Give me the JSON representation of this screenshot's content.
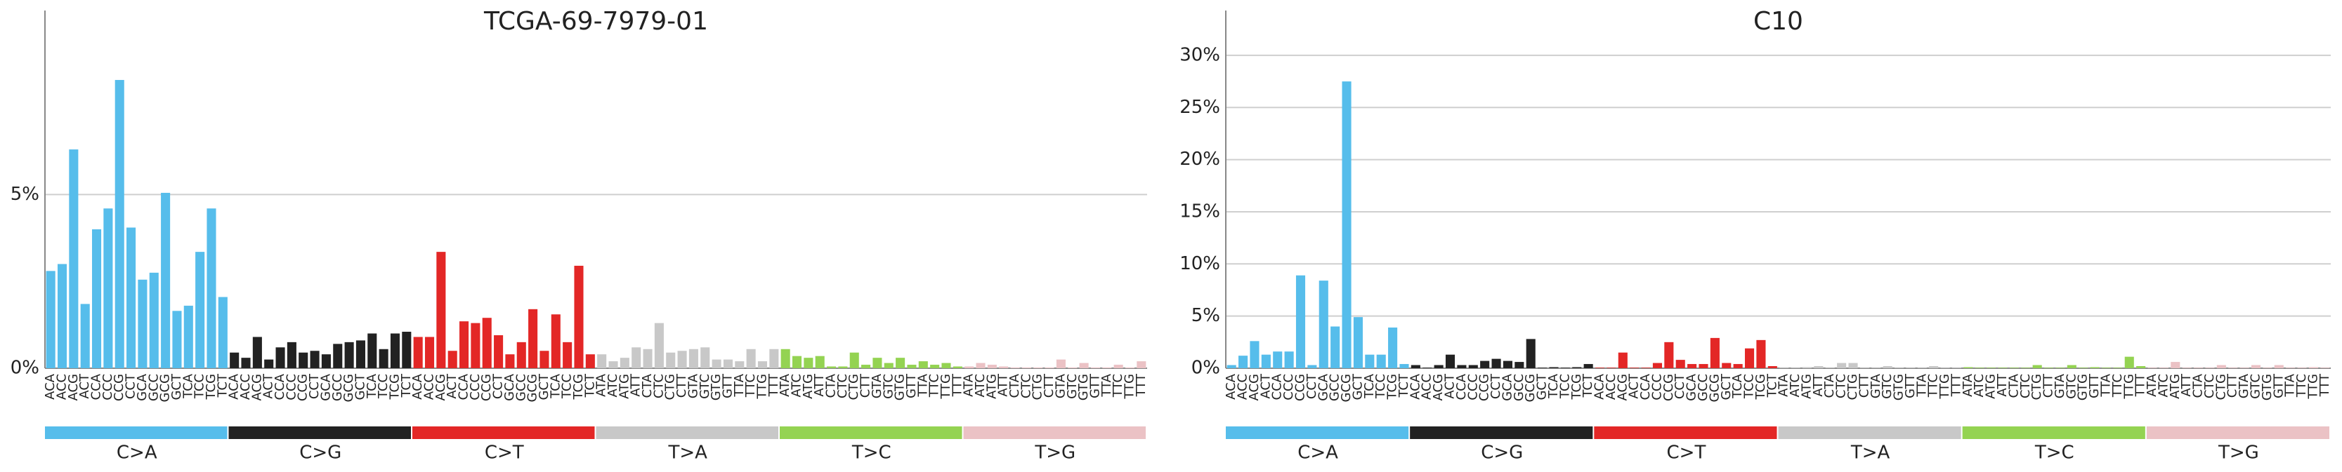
{
  "chart_data": [
    {
      "type": "bar",
      "title": "TCGA-69-7979-01",
      "categories": [
        "ACA",
        "ACC",
        "ACG",
        "ACT",
        "CCA",
        "CCC",
        "CCG",
        "CCT",
        "GCA",
        "GCC",
        "GCG",
        "GCT",
        "TCA",
        "TCC",
        "TCG",
        "TCT",
        "ACA",
        "ACC",
        "ACG",
        "ACT",
        "CCA",
        "CCC",
        "CCG",
        "CCT",
        "GCA",
        "GCC",
        "GCG",
        "GCT",
        "TCA",
        "TCC",
        "TCG",
        "TCT",
        "ACA",
        "ACC",
        "ACG",
        "ACT",
        "CCA",
        "CCC",
        "CCG",
        "CCT",
        "GCA",
        "GCC",
        "GCG",
        "GCT",
        "TCA",
        "TCC",
        "TCG",
        "TCT",
        "ATA",
        "ATC",
        "ATG",
        "ATT",
        "CTA",
        "CTC",
        "CTG",
        "CTT",
        "GTA",
        "GTC",
        "GTG",
        "GTT",
        "TTA",
        "TTC",
        "TTG",
        "TTT",
        "ATA",
        "ATC",
        "ATG",
        "ATT",
        "CTA",
        "CTC",
        "CTG",
        "CTT",
        "GTA",
        "GTC",
        "GTG",
        "GTT",
        "TTA",
        "TTC",
        "TTG",
        "TTT",
        "ATA",
        "ATC",
        "ATG",
        "ATT",
        "CTA",
        "CTC",
        "CTG",
        "CTT",
        "GTA",
        "GTC",
        "GTG",
        "GTT",
        "TTA",
        "TTC",
        "TTG",
        "TTT"
      ],
      "values": [
        2.8,
        3.0,
        6.3,
        1.85,
        4.0,
        4.6,
        8.3,
        4.05,
        2.55,
        2.75,
        5.05,
        1.65,
        1.8,
        3.35,
        4.6,
        2.05,
        0.45,
        0.3,
        0.9,
        0.25,
        0.6,
        0.75,
        0.45,
        0.5,
        0.4,
        0.7,
        0.75,
        0.8,
        1.0,
        0.55,
        1.0,
        1.05,
        0.9,
        0.9,
        3.35,
        0.5,
        1.35,
        1.3,
        1.45,
        0.95,
        0.4,
        0.75,
        1.7,
        0.5,
        1.55,
        0.75,
        2.95,
        0.4,
        0.4,
        0.2,
        0.3,
        0.6,
        0.55,
        1.3,
        0.45,
        0.5,
        0.55,
        0.6,
        0.25,
        0.25,
        0.2,
        0.55,
        0.2,
        0.55,
        0.55,
        0.35,
        0.3,
        0.35,
        0.05,
        0.05,
        0.45,
        0.1,
        0.3,
        0.15,
        0.3,
        0.1,
        0.2,
        0.1,
        0.15,
        0.05,
        0.05,
        0.15,
        0.1,
        0.05,
        0.02,
        0.02,
        0.02,
        0.02,
        0.25,
        0.02,
        0.15,
        0.02,
        0.02,
        0.1,
        0.02,
        0.2
      ],
      "groups": [
        "C>A",
        "C>G",
        "C>T",
        "T>A",
        "T>C",
        "T>G"
      ],
      "colors": [
        "#56bdeb",
        "#222222",
        "#e32726",
        "#c8c8c8",
        "#94d352",
        "#ebc2c5"
      ],
      "ylim": [
        0,
        10.3
      ],
      "yticks": [
        {
          "value": 0,
          "label": "0%"
        },
        {
          "value": 5,
          "label": "5%"
        }
      ],
      "grid": true
    },
    {
      "type": "bar",
      "title": "C10",
      "categories": [
        "ACA",
        "ACC",
        "ACG",
        "ACT",
        "CCA",
        "CCC",
        "CCG",
        "CCT",
        "GCA",
        "GCC",
        "GCG",
        "GCT",
        "TCA",
        "TCC",
        "TCG",
        "TCT",
        "ACA",
        "ACC",
        "ACG",
        "ACT",
        "CCA",
        "CCC",
        "CCG",
        "CCT",
        "GCA",
        "GCC",
        "GCG",
        "GCT",
        "TCA",
        "TCC",
        "TCG",
        "TCT",
        "ACA",
        "ACC",
        "ACG",
        "ACT",
        "CCA",
        "CCC",
        "CCG",
        "CCT",
        "GCA",
        "GCC",
        "GCG",
        "GCT",
        "TCA",
        "TCC",
        "TCG",
        "TCT",
        "ATA",
        "ATC",
        "ATG",
        "ATT",
        "CTA",
        "CTC",
        "CTG",
        "CTT",
        "GTA",
        "GTC",
        "GTG",
        "GTT",
        "TTA",
        "TTC",
        "TTG",
        "TTT",
        "ATA",
        "ATC",
        "ATG",
        "ATT",
        "CTA",
        "CTC",
        "CTG",
        "CTT",
        "GTA",
        "GTC",
        "GTG",
        "GTT",
        "TTA",
        "TTC",
        "TTG",
        "TTT",
        "ATA",
        "ATC",
        "ATG",
        "ATT",
        "CTA",
        "CTC",
        "CTG",
        "CTT",
        "GTA",
        "GTC",
        "GTG",
        "GTT",
        "TTA",
        "TTC",
        "TTG",
        "TTT"
      ],
      "values": [
        0.3,
        1.2,
        2.6,
        1.3,
        1.6,
        1.6,
        8.9,
        0.3,
        8.4,
        4.0,
        27.5,
        4.9,
        1.3,
        1.3,
        3.9,
        0.4,
        0.3,
        0.05,
        0.3,
        1.3,
        0.3,
        0.3,
        0.7,
        0.9,
        0.7,
        0.6,
        2.8,
        0.05,
        0.1,
        0.05,
        0.1,
        0.4,
        0.05,
        0.05,
        1.5,
        0.05,
        0.05,
        0.5,
        2.5,
        0.8,
        0.4,
        0.4,
        2.9,
        0.5,
        0.4,
        1.9,
        2.7,
        0.2,
        0.05,
        0.05,
        0.1,
        0.2,
        0.05,
        0.5,
        0.5,
        0.05,
        0.05,
        0.2,
        0.05,
        0.05,
        0.05,
        0.2,
        0.05,
        0.05,
        0.1,
        0.05,
        0.05,
        0.05,
        0.05,
        0.05,
        0.3,
        0.05,
        0.05,
        0.3,
        0.05,
        0.1,
        0.05,
        0.05,
        1.1,
        0.2,
        0.05,
        0.05,
        0.6,
        0.05,
        0.05,
        0.05,
        0.3,
        0.05,
        0.05,
        0.3,
        0.05,
        0.3,
        0.05,
        0.05,
        0.1,
        0.05
      ],
      "groups": [
        "C>A",
        "C>G",
        "C>T",
        "T>A",
        "T>C",
        "T>G"
      ],
      "colors": [
        "#56bdeb",
        "#222222",
        "#e32726",
        "#c8c8c8",
        "#94d352",
        "#ebc2c5"
      ],
      "ylim": [
        0,
        34.3
      ],
      "yticks": [
        {
          "value": 0,
          "label": "0%"
        },
        {
          "value": 5,
          "label": "5%"
        },
        {
          "value": 10,
          "label": "10%"
        },
        {
          "value": 15,
          "label": "15%"
        },
        {
          "value": 20,
          "label": "20%"
        },
        {
          "value": 25,
          "label": "25%"
        },
        {
          "value": 30,
          "label": "30%"
        }
      ],
      "grid": true
    }
  ]
}
